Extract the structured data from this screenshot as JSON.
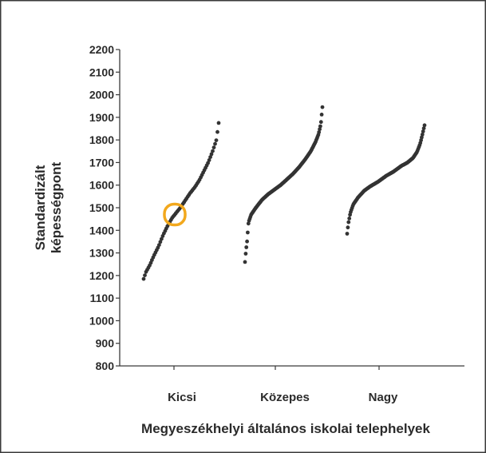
{
  "chart_data": {
    "type": "scatter",
    "title": "",
    "ylabel_lines": [
      "Standardizált",
      "képességpont"
    ],
    "xlabel": "Megyeszékhelyi általános iskolai telephelyek",
    "categories": [
      "Kicsi",
      "Közepes",
      "Nagy"
    ],
    "ylim": [
      800,
      2200
    ],
    "yticks": [
      800,
      900,
      1000,
      1100,
      1200,
      1300,
      1400,
      1500,
      1600,
      1700,
      1800,
      1900,
      2000,
      2100,
      2200
    ],
    "grid": false,
    "legend": "none",
    "point_color": "#333333",
    "highlight_color": "#f2a81d",
    "highlight": {
      "category": "Kicsi",
      "value": 1470
    },
    "series": [
      {
        "category": "Kicsi",
        "count": 64,
        "quantiles": [
          [
            0,
            1185
          ],
          [
            0.03,
            1215
          ],
          [
            0.08,
            1245
          ],
          [
            0.14,
            1290
          ],
          [
            0.2,
            1330
          ],
          [
            0.26,
            1380
          ],
          [
            0.32,
            1420
          ],
          [
            0.38,
            1455
          ],
          [
            0.44,
            1480
          ],
          [
            0.5,
            1505
          ],
          [
            0.56,
            1535
          ],
          [
            0.62,
            1565
          ],
          [
            0.68,
            1590
          ],
          [
            0.74,
            1620
          ],
          [
            0.8,
            1660
          ],
          [
            0.86,
            1700
          ],
          [
            0.92,
            1750
          ],
          [
            0.97,
            1800
          ],
          [
            1,
            1875
          ]
        ]
      },
      {
        "category": "Közepes",
        "count": 115,
        "quantiles": [
          [
            0,
            1260
          ],
          [
            0.012,
            1310
          ],
          [
            0.025,
            1345
          ],
          [
            0.045,
            1435
          ],
          [
            0.08,
            1470
          ],
          [
            0.14,
            1500
          ],
          [
            0.22,
            1535
          ],
          [
            0.3,
            1560
          ],
          [
            0.38,
            1580
          ],
          [
            0.46,
            1600
          ],
          [
            0.54,
            1625
          ],
          [
            0.62,
            1650
          ],
          [
            0.7,
            1680
          ],
          [
            0.78,
            1715
          ],
          [
            0.85,
            1750
          ],
          [
            0.91,
            1790
          ],
          [
            0.95,
            1825
          ],
          [
            0.98,
            1870
          ],
          [
            1,
            1945
          ]
        ]
      },
      {
        "category": "Nagy",
        "count": 110,
        "quantiles": [
          [
            0,
            1385
          ],
          [
            0.015,
            1430
          ],
          [
            0.04,
            1475
          ],
          [
            0.08,
            1515
          ],
          [
            0.14,
            1545
          ],
          [
            0.22,
            1575
          ],
          [
            0.3,
            1595
          ],
          [
            0.4,
            1615
          ],
          [
            0.5,
            1640
          ],
          [
            0.6,
            1660
          ],
          [
            0.7,
            1685
          ],
          [
            0.78,
            1700
          ],
          [
            0.85,
            1720
          ],
          [
            0.9,
            1745
          ],
          [
            0.94,
            1780
          ],
          [
            0.97,
            1820
          ],
          [
            1,
            1865
          ]
        ]
      }
    ]
  }
}
